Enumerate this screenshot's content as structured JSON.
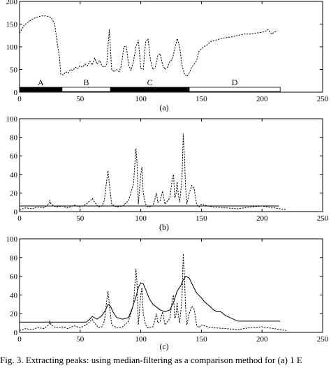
{
  "chart_data": [
    {
      "type": "line",
      "caption": "(a)",
      "xlim": [
        0,
        250
      ],
      "ylim": [
        0,
        200
      ],
      "x_ticks": [
        0,
        50,
        100,
        150,
        200,
        250
      ],
      "y_ticks": [
        0,
        50,
        100,
        150,
        200
      ],
      "series": [
        {
          "style": "dashed",
          "x": [
            0,
            2,
            4,
            6,
            8,
            10,
            14,
            18,
            22,
            26,
            29,
            31,
            33,
            34,
            36,
            38,
            40,
            42,
            44,
            46,
            48,
            50,
            52,
            54,
            56,
            58,
            60,
            62,
            64,
            66,
            68,
            70,
            72,
            73,
            74,
            75,
            76,
            78,
            80,
            82,
            84,
            86,
            88,
            90,
            92,
            94,
            96,
            98,
            100,
            102,
            104,
            106,
            108,
            110,
            112,
            114,
            116,
            118,
            120,
            122,
            124,
            126,
            128,
            130,
            132,
            134,
            136,
            138,
            140,
            142,
            144,
            146,
            148,
            150,
            152,
            155,
            158,
            162,
            166,
            170,
            175,
            180,
            185,
            190,
            195,
            200,
            203,
            205,
            208,
            210,
            212
          ],
          "y": [
            130,
            140,
            148,
            152,
            156,
            160,
            165,
            168,
            168,
            165,
            150,
            110,
            75,
            40,
            38,
            45,
            42,
            50,
            48,
            55,
            52,
            58,
            55,
            62,
            58,
            68,
            60,
            75,
            62,
            70,
            58,
            55,
            62,
            100,
            138,
            95,
            50,
            45,
            50,
            45,
            58,
            100,
            102,
            60,
            48,
            68,
            100,
            115,
            52,
            50,
            110,
            118,
            70,
            50,
            55,
            80,
            85,
            60,
            50,
            55,
            68,
            72,
            95,
            118,
            100,
            60,
            40,
            35,
            42,
            55,
            62,
            70,
            90,
            95,
            100,
            105,
            112,
            115,
            118,
            120,
            122,
            125,
            128,
            128,
            130,
            132,
            134,
            138,
            128,
            132,
            134
          ]
        }
      ],
      "segments": [
        {
          "label": "A",
          "start": 0,
          "end": 35,
          "fill": "black"
        },
        {
          "label": "B",
          "start": 35,
          "end": 75,
          "fill": "white"
        },
        {
          "label": "C",
          "start": 75,
          "end": 140,
          "fill": "black"
        },
        {
          "label": "D",
          "start": 140,
          "end": 215,
          "fill": "white"
        }
      ]
    },
    {
      "type": "line",
      "caption": "(b)",
      "xlim": [
        0,
        250
      ],
      "ylim": [
        0,
        100
      ],
      "x_ticks": [
        0,
        50,
        100,
        150,
        200,
        250
      ],
      "y_ticks": [
        0,
        20,
        40,
        60,
        80,
        100
      ],
      "series": [
        {
          "style": "dashed",
          "x": [
            0,
            5,
            10,
            15,
            20,
            24,
            25,
            26,
            30,
            35,
            40,
            45,
            50,
            55,
            60,
            62,
            65,
            68,
            70,
            72,
            73,
            74,
            76,
            80,
            85,
            90,
            94,
            96,
            97,
            98,
            100,
            101,
            102,
            104,
            106,
            110,
            112,
            113,
            114,
            116,
            118,
            120,
            124,
            126,
            127,
            128,
            129,
            130,
            131,
            132,
            134,
            135,
            136,
            137,
            138,
            140,
            142,
            144,
            146,
            148,
            150,
            155,
            160,
            170,
            180,
            190,
            200,
            210,
            220
          ],
          "y": [
            2,
            4,
            3,
            5,
            4,
            8,
            12,
            8,
            5,
            6,
            4,
            7,
            5,
            8,
            14,
            10,
            5,
            6,
            12,
            35,
            44,
            30,
            8,
            5,
            6,
            12,
            30,
            68,
            50,
            8,
            40,
            48,
            20,
            8,
            5,
            6,
            15,
            20,
            10,
            12,
            22,
            8,
            15,
            35,
            40,
            15,
            18,
            32,
            18,
            10,
            35,
            84,
            60,
            25,
            8,
            20,
            28,
            25,
            8,
            5,
            8,
            6,
            5,
            4,
            3,
            5,
            6,
            4,
            2
          ]
        },
        {
          "style": "solid",
          "x": [
            0,
            214
          ],
          "y": [
            6,
            6
          ]
        }
      ]
    },
    {
      "type": "line",
      "caption": "(c)",
      "xlim": [
        0,
        250
      ],
      "ylim": [
        0,
        100
      ],
      "x_ticks": [
        0,
        50,
        100,
        150,
        200,
        250
      ],
      "y_ticks": [
        0,
        20,
        40,
        60,
        80,
        100
      ],
      "series": [
        {
          "style": "dashed",
          "x": [
            0,
            5,
            10,
            15,
            20,
            24,
            25,
            26,
            30,
            35,
            40,
            45,
            50,
            55,
            60,
            62,
            65,
            68,
            70,
            72,
            73,
            74,
            76,
            80,
            85,
            90,
            94,
            96,
            97,
            98,
            100,
            101,
            102,
            104,
            106,
            110,
            112,
            113,
            114,
            116,
            118,
            120,
            124,
            126,
            127,
            128,
            129,
            130,
            131,
            132,
            134,
            135,
            136,
            137,
            138,
            140,
            142,
            144,
            146,
            148,
            150,
            155,
            160,
            170,
            180,
            190,
            200,
            210,
            220
          ],
          "y": [
            2,
            4,
            3,
            5,
            4,
            8,
            12,
            8,
            5,
            6,
            4,
            7,
            5,
            8,
            14,
            10,
            5,
            6,
            12,
            35,
            44,
            30,
            8,
            5,
            6,
            12,
            30,
            68,
            50,
            8,
            40,
            48,
            20,
            8,
            5,
            6,
            15,
            20,
            10,
            12,
            22,
            8,
            15,
            35,
            40,
            15,
            18,
            32,
            18,
            10,
            35,
            84,
            60,
            25,
            8,
            20,
            28,
            25,
            8,
            5,
            8,
            6,
            5,
            4,
            3,
            5,
            6,
            4,
            2
          ]
        },
        {
          "style": "solid",
          "x": [
            0,
            55,
            57,
            60,
            64,
            68,
            71,
            73,
            75,
            77,
            80,
            85,
            90,
            93,
            96,
            98,
            100,
            102,
            104,
            107,
            110,
            113,
            116,
            120,
            124,
            127,
            130,
            133,
            135,
            137,
            140,
            143,
            146,
            150,
            153,
            157,
            160,
            163,
            166,
            170,
            175,
            180,
            200,
            215
          ],
          "y": [
            11,
            11,
            13,
            17,
            14,
            18,
            24,
            30,
            28,
            22,
            16,
            14,
            16,
            26,
            38,
            48,
            53,
            52,
            46,
            36,
            30,
            27,
            24,
            22,
            24,
            32,
            44,
            50,
            56,
            60,
            58,
            50,
            42,
            37,
            32,
            28,
            24,
            22,
            22,
            18,
            15,
            12,
            12,
            12
          ]
        }
      ]
    }
  ],
  "footer_text": "Fig. 3.  Extracting peaks: using median-filtering as a comparison method for (a)  1 E"
}
